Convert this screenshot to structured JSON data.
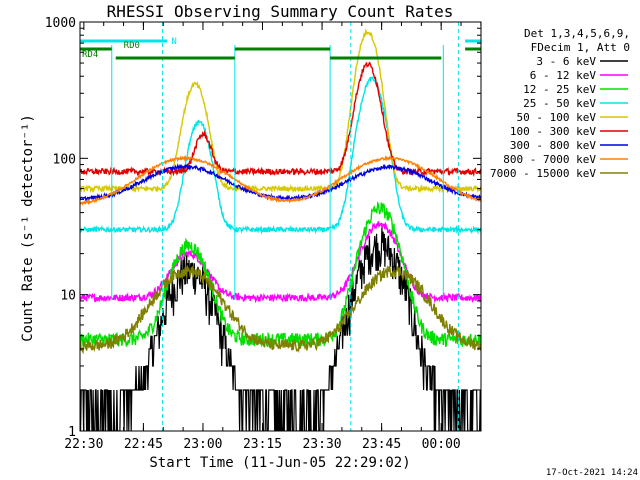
{
  "chart_data": {
    "type": "line",
    "title": "RHESSI Observing Summary Count Rates",
    "xlabel": "Start Time (11-Jun-05 22:29:02)",
    "ylabel": "Count Rate (s⁻¹ detector⁻¹)",
    "yscale": "log",
    "ylim": [
      1,
      1000
    ],
    "xlim": [
      "22:29:02",
      "00:10:00"
    ],
    "x_ticks": [
      "22:30",
      "22:45",
      "23:00",
      "23:15",
      "23:30",
      "23:45",
      "00:00"
    ],
    "x_tick_minutes": [
      0.97,
      15.97,
      30.97,
      45.97,
      60.97,
      75.97,
      90.97
    ],
    "y_ticks": [
      "1",
      "10",
      "100",
      "1000"
    ],
    "y_tick_values": [
      1,
      10,
      100,
      1000
    ],
    "legend_header": [
      "Det 1,3,4,5,6,9,",
      "FDecim 1, Att 0"
    ],
    "legend_position": "right",
    "timestamp": "17-Oct-2021 14:24",
    "flags": [
      {
        "label": "N",
        "color": "#00e5e5",
        "segments": [
          [
            0,
            22
          ],
          [
            97,
            101
          ]
        ]
      },
      {
        "label": "RD0",
        "color": "#007f00",
        "segments": [
          [
            0,
            8
          ],
          [
            39,
            63
          ],
          [
            97,
            101
          ]
        ]
      },
      {
        "label": "RD4",
        "color": "#007f00",
        "segments": [
          [
            9,
            39
          ],
          [
            63,
            91
          ]
        ]
      }
    ],
    "vlines_dashed_min": [
      20.8,
      68.2,
      95.3
    ],
    "vlines_solid_min": [
      8,
      39,
      63,
      91.5
    ],
    "series": [
      {
        "name": "3 - 6 keV",
        "color": "#000000",
        "base": 1.5,
        "peaks": [
          [
            27.5,
            15,
            5
          ],
          [
            75.5,
            23,
            5
          ]
        ],
        "noise": 0.35
      },
      {
        "name": "6 - 12 keV",
        "color": "#ff00ff",
        "base": 9.5,
        "peaks": [
          [
            27.5,
            20,
            4
          ],
          [
            75.5,
            33,
            4
          ]
        ],
        "noise": 0.06
      },
      {
        "name": "12 - 25 keV",
        "color": "#00e000",
        "base": 4.7,
        "peaks": [
          [
            27.5,
            23,
            4
          ],
          [
            75.5,
            43,
            4
          ]
        ],
        "noise": 0.12
      },
      {
        "name": "25 - 50 keV",
        "color": "#00e5e5",
        "base": 30,
        "peaks": [
          [
            30,
            185,
            2.5
          ],
          [
            73.5,
            380,
            2.8
          ]
        ],
        "noise": 0.04
      },
      {
        "name": "50 - 100 keV",
        "color": "#d8c800",
        "base": 60,
        "peaks": [
          [
            29,
            350,
            2.5
          ],
          [
            72.5,
            850,
            2.5
          ]
        ],
        "noise": 0.04
      },
      {
        "name": "100 - 300 keV",
        "color": "#e00000",
        "base": 80,
        "peaks": [
          [
            31,
            150,
            1.8
          ],
          [
            72.5,
            490,
            2.5
          ]
        ],
        "noise": 0.05
      },
      {
        "name": "300 - 800 keV",
        "color": "#0000e0",
        "base": 50,
        "peaks": [
          [
            26.5,
            87,
            9
          ],
          [
            78,
            86,
            9
          ]
        ],
        "noise": 0.03
      },
      {
        "name": "800 - 7000 keV",
        "color": "#ff8000",
        "base": 45,
        "peaks": [
          [
            26.5,
            100,
            10
          ],
          [
            78,
            100,
            10
          ]
        ],
        "noise": 0.02
      },
      {
        "name": "7000 - 15000 keV",
        "color": "#808000",
        "base": 4.2,
        "peaks": [
          [
            27,
            15,
            7
          ],
          [
            79,
            15,
            7
          ]
        ],
        "noise": 0.1
      }
    ]
  }
}
